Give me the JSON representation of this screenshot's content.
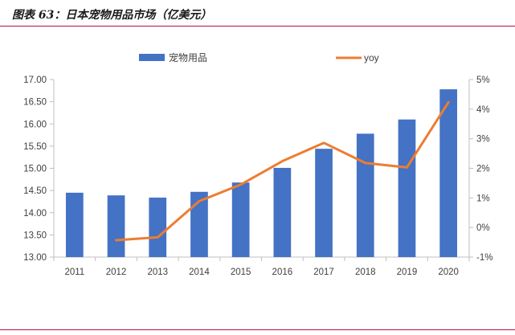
{
  "caption": {
    "title": "图表 63：日本宠物用品市场（亿美元）"
  },
  "chart_data": {
    "type": "bar",
    "categories": [
      "2011",
      "2012",
      "2013",
      "2014",
      "2015",
      "2016",
      "2017",
      "2018",
      "2019",
      "2020"
    ],
    "series": [
      {
        "name": "宠物用品",
        "type": "bar",
        "axis": "left",
        "color": "#4472C4",
        "values": [
          14.45,
          14.39,
          14.34,
          14.47,
          14.68,
          15.01,
          15.44,
          15.78,
          16.1,
          16.78
        ]
      },
      {
        "name": "yoy",
        "type": "line",
        "axis": "right",
        "color": "#ED7D31",
        "values": [
          null,
          -0.43,
          -0.33,
          0.89,
          1.45,
          2.24,
          2.86,
          2.18,
          2.03,
          4.23
        ]
      }
    ],
    "left_axis": {
      "min": 13.0,
      "max": 17.0,
      "step": 0.5,
      "tick_labels": [
        "13.00",
        "13.50",
        "14.00",
        "14.50",
        "15.00",
        "15.50",
        "16.00",
        "16.50",
        "17.00"
      ]
    },
    "right_axis": {
      "min": -1,
      "max": 5,
      "step": 1,
      "tick_labels": [
        "-1%",
        "0%",
        "1%",
        "2%",
        "3%",
        "4%",
        "5%"
      ]
    },
    "legend": {
      "position": "top"
    },
    "grid": false
  }
}
